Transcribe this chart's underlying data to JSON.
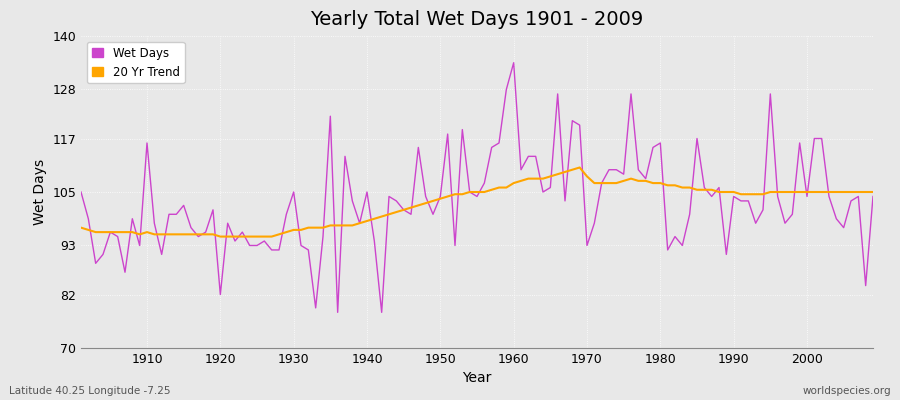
{
  "title": "Yearly Total Wet Days 1901 - 2009",
  "xlabel": "Year",
  "ylabel": "Wet Days",
  "footer_left": "Latitude 40.25 Longitude -7.25",
  "footer_right": "worldspecies.org",
  "ylim": [
    70,
    140
  ],
  "yticks": [
    70,
    82,
    93,
    105,
    117,
    128,
    140
  ],
  "xlim": [
    1901,
    2009
  ],
  "xticks": [
    1910,
    1920,
    1930,
    1940,
    1950,
    1960,
    1970,
    1980,
    1990,
    2000
  ],
  "wet_days_color": "#cc44cc",
  "trend_color": "#ffa500",
  "bg_color": "#e8e8e8",
  "plot_bg_color": "#e8e8e8",
  "wet_days": {
    "1901": 105,
    "1902": 99,
    "1903": 89,
    "1904": 91,
    "1905": 96,
    "1906": 95,
    "1907": 87,
    "1908": 99,
    "1909": 93,
    "1910": 116,
    "1911": 98,
    "1912": 91,
    "1913": 100,
    "1914": 100,
    "1915": 102,
    "1916": 97,
    "1917": 95,
    "1918": 96,
    "1919": 101,
    "1920": 82,
    "1921": 98,
    "1922": 94,
    "1923": 96,
    "1924": 93,
    "1925": 93,
    "1926": 94,
    "1927": 92,
    "1928": 92,
    "1929": 100,
    "1930": 105,
    "1931": 93,
    "1932": 92,
    "1933": 79,
    "1934": 95,
    "1935": 122,
    "1936": 78,
    "1937": 113,
    "1938": 103,
    "1939": 98,
    "1940": 105,
    "1941": 94,
    "1942": 78,
    "1943": 104,
    "1944": 103,
    "1945": 101,
    "1946": 100,
    "1947": 115,
    "1948": 104,
    "1949": 100,
    "1950": 104,
    "1951": 118,
    "1952": 93,
    "1953": 119,
    "1954": 105,
    "1955": 104,
    "1956": 107,
    "1957": 115,
    "1958": 116,
    "1959": 128,
    "1960": 134,
    "1961": 110,
    "1962": 113,
    "1963": 113,
    "1964": 105,
    "1965": 106,
    "1966": 127,
    "1967": 103,
    "1968": 121,
    "1969": 120,
    "1970": 93,
    "1971": 98,
    "1972": 107,
    "1973": 110,
    "1974": 110,
    "1975": 109,
    "1976": 127,
    "1977": 110,
    "1978": 108,
    "1979": 115,
    "1980": 116,
    "1981": 92,
    "1982": 95,
    "1983": 93,
    "1984": 100,
    "1985": 117,
    "1986": 106,
    "1987": 104,
    "1988": 106,
    "1989": 91,
    "1990": 104,
    "1991": 103,
    "1992": 103,
    "1993": 98,
    "1994": 101,
    "1995": 127,
    "1996": 104,
    "1997": 98,
    "1998": 100,
    "1999": 116,
    "2000": 104,
    "2001": 117,
    "2002": 117,
    "2003": 104,
    "2004": 99,
    "2005": 97,
    "2006": 103,
    "2007": 104,
    "2008": 84,
    "2009": 104
  },
  "trend_20yr": {
    "1901": 97.0,
    "1902": 96.5,
    "1903": 96.0,
    "1904": 96.0,
    "1905": 96.0,
    "1906": 96.0,
    "1907": 96.0,
    "1908": 96.0,
    "1909": 95.5,
    "1910": 96.0,
    "1911": 95.5,
    "1912": 95.5,
    "1913": 95.5,
    "1914": 95.5,
    "1915": 95.5,
    "1916": 95.5,
    "1917": 95.5,
    "1918": 95.5,
    "1919": 95.5,
    "1920": 95.0,
    "1921": 95.0,
    "1922": 95.0,
    "1923": 95.0,
    "1924": 95.0,
    "1925": 95.0,
    "1926": 95.0,
    "1927": 95.0,
    "1928": 95.5,
    "1929": 96.0,
    "1930": 96.5,
    "1931": 96.5,
    "1932": 97.0,
    "1933": 97.0,
    "1934": 97.0,
    "1935": 97.5,
    "1936": 97.5,
    "1937": 97.5,
    "1938": 97.5,
    "1939": 98.0,
    "1940": 98.5,
    "1941": 99.0,
    "1942": 99.5,
    "1943": 100.0,
    "1944": 100.5,
    "1945": 101.0,
    "1946": 101.5,
    "1947": 102.0,
    "1948": 102.5,
    "1949": 103.0,
    "1950": 103.5,
    "1951": 104.0,
    "1952": 104.5,
    "1953": 104.5,
    "1954": 105.0,
    "1955": 105.0,
    "1956": 105.0,
    "1957": 105.5,
    "1958": 106.0,
    "1959": 106.0,
    "1960": 107.0,
    "1961": 107.5,
    "1962": 108.0,
    "1963": 108.0,
    "1964": 108.0,
    "1965": 108.5,
    "1966": 109.0,
    "1967": 109.5,
    "1968": 110.0,
    "1969": 110.5,
    "1970": 108.5,
    "1971": 107.0,
    "1972": 107.0,
    "1973": 107.0,
    "1974": 107.0,
    "1975": 107.5,
    "1976": 108.0,
    "1977": 107.5,
    "1978": 107.5,
    "1979": 107.0,
    "1980": 107.0,
    "1981": 106.5,
    "1982": 106.5,
    "1983": 106.0,
    "1984": 106.0,
    "1985": 105.5,
    "1986": 105.5,
    "1987": 105.5,
    "1988": 105.0,
    "1989": 105.0,
    "1990": 105.0,
    "1991": 104.5,
    "1992": 104.5,
    "1993": 104.5,
    "1994": 104.5,
    "1995": 105.0,
    "1996": 105.0,
    "1997": 105.0,
    "1998": 105.0,
    "1999": 105.0,
    "2000": 105.0,
    "2001": 105.0,
    "2002": 105.0,
    "2003": 105.0,
    "2004": 105.0,
    "2005": 105.0,
    "2006": 105.0,
    "2007": 105.0,
    "2008": 105.0,
    "2009": 105.0
  }
}
